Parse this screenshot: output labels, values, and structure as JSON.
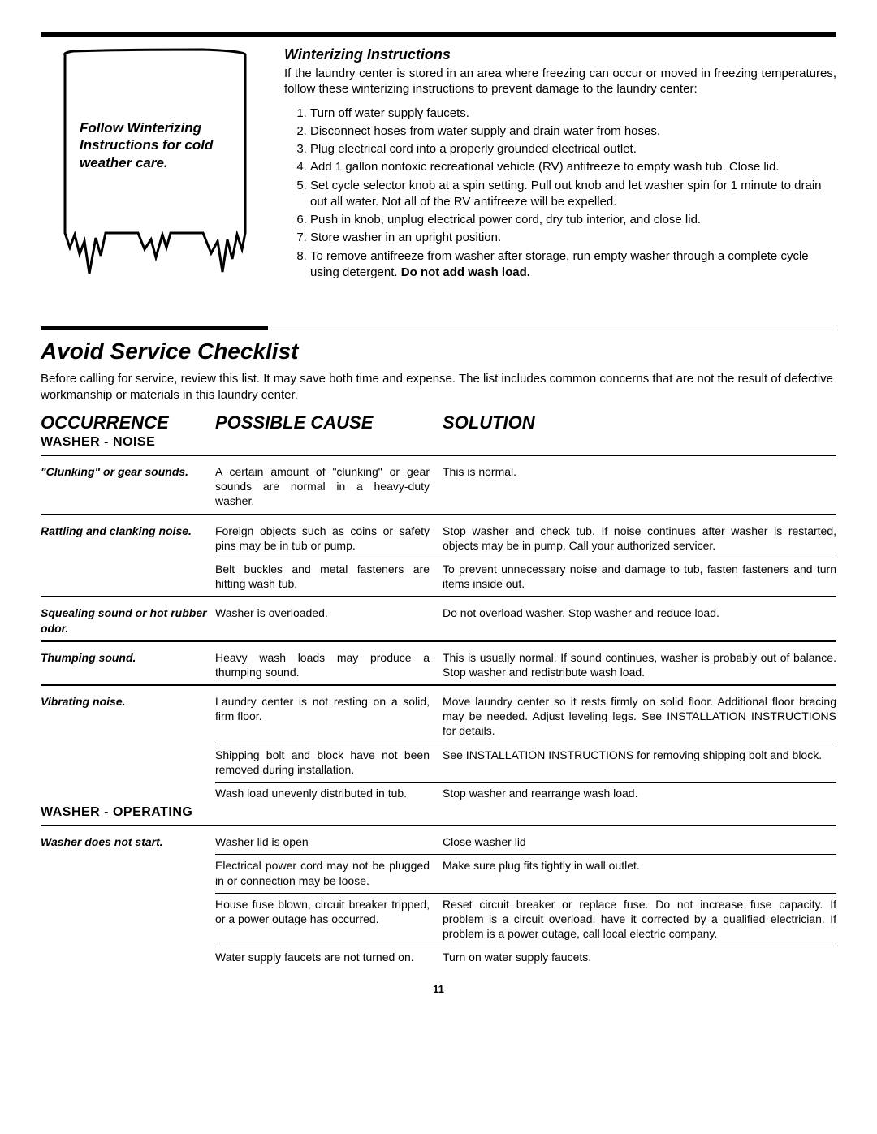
{
  "illustration_caption": "Follow Winterizing Instructions for cold weather care.",
  "winterizing": {
    "heading": "Winterizing Instructions",
    "intro": "If the laundry center is stored in an area where freezing can occur or moved in freezing temperatures, follow these winterizing instructions to prevent damage to the laundry center:",
    "steps": [
      "Turn off water supply faucets.",
      "Disconnect hoses from water supply and drain water from hoses.",
      "Plug electrical cord into a properly grounded electrical outlet.",
      "Add 1 gallon nontoxic recreational vehicle (RV) antifreeze to empty wash tub. Close lid.",
      "Set cycle selector knob at a spin setting. Pull out knob and let washer spin for 1 minute to drain out all water. Not all of the RV antifreeze will be expelled.",
      "Push in knob, unplug electrical power cord, dry tub interior, and close lid.",
      "Store washer in an upright position.",
      "To remove antifreeze from washer after storage, run empty washer through a complete cycle using detergent. "
    ],
    "step8_bold": "Do not add wash load."
  },
  "checklist": {
    "heading": "Avoid Service Checklist",
    "intro": "Before calling for service, review this list. It may save both time and expense. The list includes common concerns that are not the result of defective workmanship or materials in this laundry center.",
    "columns": {
      "occ": "OCCURRENCE",
      "cause": "POSSIBLE CAUSE",
      "sol": "SOLUTION"
    },
    "sections": [
      {
        "title": "WASHER - NOISE",
        "rows": [
          {
            "occ": "\"Clunking\" or gear sounds.",
            "subrows": [
              {
                "cause": "A certain amount of \"clunking\" or gear sounds are normal in a heavy-duty washer.",
                "sol": "This is normal."
              }
            ]
          },
          {
            "occ": "Rattling and clanking noise.",
            "subrows": [
              {
                "cause": "Foreign objects such as coins or safety pins may be in tub or pump.",
                "sol": "Stop washer and check tub. If noise continues after washer is restarted, objects may be in pump. Call your authorized servicer."
              },
              {
                "cause": "Belt buckles and metal fasteners are hitting wash tub.",
                "sol": "To prevent unnecessary noise and damage to tub, fasten fasteners and turn items inside out."
              }
            ]
          },
          {
            "occ": "Squealing sound or hot rubber odor.",
            "subrows": [
              {
                "cause": "Washer is overloaded.",
                "sol": "Do not overload washer. Stop washer and reduce load."
              }
            ]
          },
          {
            "occ": "Thumping sound.",
            "subrows": [
              {
                "cause": "Heavy wash loads may produce a thumping sound.",
                "sol": "This is usually normal. If sound continues, washer is probably out of balance. Stop washer and redistribute wash load."
              }
            ]
          },
          {
            "occ": "Vibrating noise.",
            "subrows": [
              {
                "cause": "Laundry center is not resting on a solid, firm floor.",
                "sol": "Move laundry center so it rests firmly on solid floor. Additional floor bracing may be needed. Adjust leveling legs. See INSTALLATION INSTRUCTIONS for details."
              },
              {
                "cause": "Shipping bolt and block have not been removed during installation.",
                "sol": "See INSTALLATION INSTRUCTIONS for removing shipping bolt and block."
              },
              {
                "cause": "Wash load unevenly distributed in tub.",
                "sol": "Stop washer and rearrange wash load."
              }
            ]
          }
        ]
      },
      {
        "title": "WASHER - OPERATING",
        "rows": [
          {
            "occ": "Washer does not start.",
            "subrows": [
              {
                "cause": "Washer lid is open",
                "sol": "Close washer lid"
              },
              {
                "cause": "Electrical power cord may not be plugged in or connection may be loose.",
                "sol": "Make sure plug fits tightly in wall outlet."
              },
              {
                "cause": "House fuse blown, circuit breaker tripped, or a power outage has occurred.",
                "sol": "Reset circuit breaker or replace fuse. Do not increase fuse capacity. If problem is a circuit overload, have it corrected by a qualified electrician. If problem is a power outage, call local electric company."
              },
              {
                "cause": "Water supply faucets are not turned on.",
                "sol": "Turn on water supply faucets."
              }
            ]
          }
        ]
      }
    ]
  },
  "page_number": "11"
}
